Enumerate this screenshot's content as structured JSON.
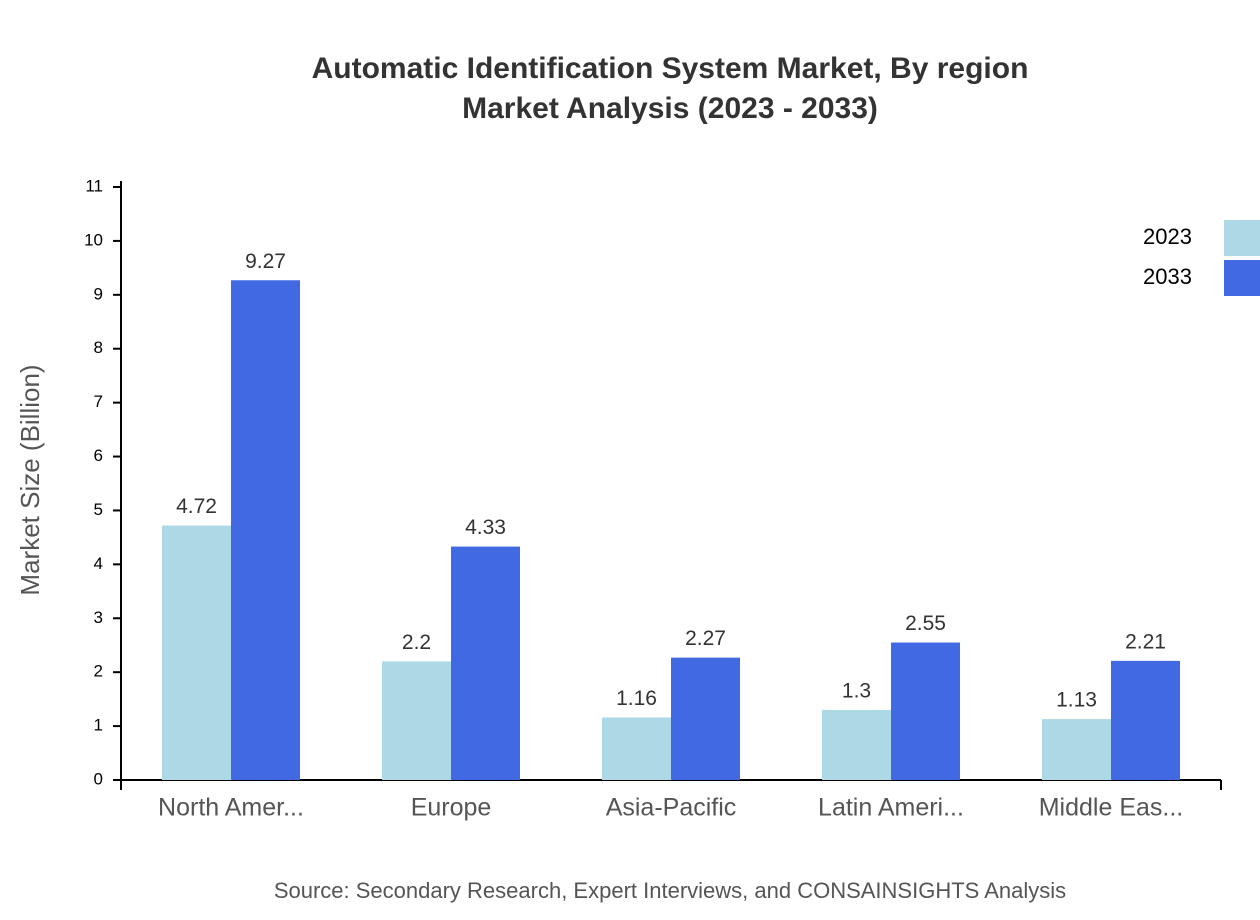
{
  "chart_data": {
    "type": "bar",
    "title": "Automatic Identification System Market, By region",
    "subtitle": "Market Analysis (2023 - 2033)",
    "y_label": "Market Size (Billion)",
    "source": "Source: Secondary Research, Expert Interviews, and CONSAINSIGHTS Analysis",
    "categories": [
      "North Amer...",
      "Europe",
      "Asia-Pacific",
      "Latin Ameri...",
      "Middle Eas..."
    ],
    "series": [
      {
        "name": "2023",
        "color": "#add8e6",
        "values": [
          4.72,
          2.2,
          1.16,
          1.3,
          1.13
        ]
      },
      {
        "name": "2033",
        "color": "#4169e1",
        "values": [
          9.27,
          4.33,
          2.27,
          2.55,
          2.21
        ]
      }
    ],
    "ylim": [
      0,
      11
    ],
    "yticks": [
      0,
      1,
      2,
      3,
      4,
      5,
      6,
      7,
      8,
      9,
      10,
      11
    ],
    "legend": "top-right"
  }
}
